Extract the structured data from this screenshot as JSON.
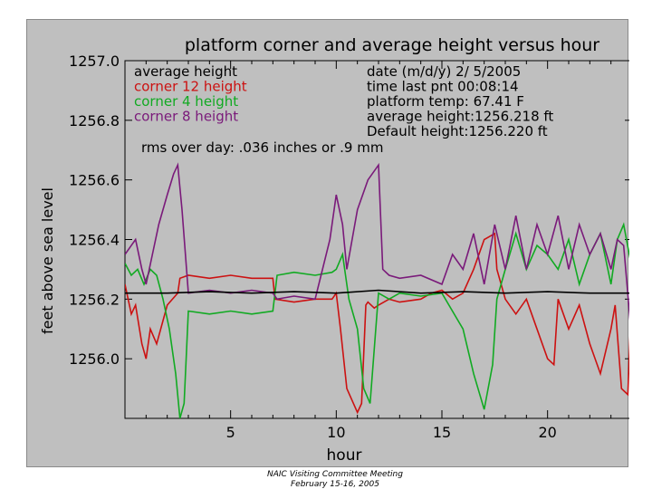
{
  "footer": {
    "line1": "NAIC Visiting Committee Meeting",
    "line2": "February 15-16, 2005"
  },
  "colors": {
    "background": "#bfbfbf",
    "average": "#000000",
    "corner12": "#cc1111",
    "corner4": "#11aa22",
    "corner8": "#7a1a7a"
  },
  "chart_data": {
    "type": "line",
    "title": "platform corner and average height versus hour",
    "xlabel": "hour",
    "ylabel": "feet above sea level",
    "xlim": [
      0,
      24
    ],
    "ylim": [
      1255.8,
      1257.0
    ],
    "x_ticks": [
      5,
      10,
      15,
      20
    ],
    "y_ticks": [
      1256.0,
      1256.2,
      1256.4,
      1256.6,
      1256.8,
      1257.0
    ],
    "y_tick_labels": [
      "1256.0",
      "1256.2",
      "1256.4",
      "1256.6",
      "1256.8",
      "1257.0"
    ],
    "grid": false,
    "legend": {
      "placement": "top-left",
      "entries": [
        {
          "label": "average    height",
          "color": "#000000"
        },
        {
          "label": "corner  12  height",
          "color": "#cc1111"
        },
        {
          "label": "corner    4  height",
          "color": "#11aa22"
        },
        {
          "label": "corner    8  height",
          "color": "#7a1a7a"
        }
      ]
    },
    "annotations": {
      "rms": "rms over day: .036 inches or .9 mm",
      "info": [
        "date (m/d/y)   2/ 5/2005",
        "time last pnt    00:08:14",
        "platform temp:    67.41  F",
        "average  height:1256.218  ft",
        "Default   height:1256.220  ft"
      ]
    },
    "series": [
      {
        "name": "average height",
        "color": "#000000",
        "x": [
          0,
          2,
          4,
          6,
          8,
          10,
          12,
          14,
          16,
          18,
          20,
          22,
          24
        ],
        "y": [
          1256.22,
          1256.22,
          1256.225,
          1256.22,
          1256.225,
          1256.22,
          1256.23,
          1256.22,
          1256.225,
          1256.22,
          1256.225,
          1256.22,
          1256.22
        ]
      },
      {
        "name": "corner 12 height",
        "color": "#cc1111",
        "x": [
          0,
          0.3,
          0.5,
          0.8,
          1.0,
          1.2,
          1.5,
          2.0,
          2.5,
          2.6,
          3.0,
          4.0,
          5.0,
          6.0,
          7.0,
          7.1,
          8.0,
          9.0,
          9.8,
          10.0,
          10.2,
          10.5,
          11.0,
          11.2,
          11.4,
          11.5,
          11.8,
          12.0,
          12.5,
          13.0,
          14.0,
          14.5,
          15.0,
          15.5,
          16.0,
          16.5,
          17.0,
          17.5,
          17.6,
          18.0,
          18.5,
          19.0,
          19.5,
          20.0,
          20.3,
          20.5,
          21.0,
          21.5,
          22.0,
          22.5,
          23.0,
          23.2,
          23.5,
          23.8,
          24.0
        ],
        "y": [
          1256.25,
          1256.15,
          1256.18,
          1256.05,
          1256.0,
          1256.1,
          1256.05,
          1256.18,
          1256.22,
          1256.27,
          1256.28,
          1256.27,
          1256.28,
          1256.27,
          1256.27,
          1256.2,
          1256.19,
          1256.2,
          1256.2,
          1256.22,
          1256.1,
          1255.9,
          1255.82,
          1255.85,
          1256.18,
          1256.19,
          1256.17,
          1256.18,
          1256.2,
          1256.19,
          1256.2,
          1256.22,
          1256.23,
          1256.2,
          1256.22,
          1256.3,
          1256.4,
          1256.42,
          1256.3,
          1256.2,
          1256.15,
          1256.2,
          1256.1,
          1256.0,
          1255.98,
          1256.2,
          1256.1,
          1256.18,
          1256.05,
          1255.95,
          1256.1,
          1256.18,
          1255.9,
          1255.88,
          1256.25
        ]
      },
      {
        "name": "corner 4 height",
        "color": "#11aa22",
        "x": [
          0,
          0.3,
          0.6,
          0.9,
          1.2,
          1.5,
          1.8,
          2.1,
          2.4,
          2.6,
          2.8,
          3.0,
          4.0,
          5.0,
          6.0,
          7.0,
          7.2,
          8.0,
          9.0,
          9.8,
          10.0,
          10.3,
          10.6,
          11.0,
          11.3,
          11.6,
          12.0,
          12.5,
          13.0,
          14.0,
          15.0,
          16.0,
          16.5,
          17.0,
          17.4,
          17.6,
          18.0,
          18.5,
          19.0,
          19.5,
          20.0,
          20.5,
          21.0,
          21.5,
          22.0,
          22.5,
          23.0,
          23.3,
          23.6,
          24.0
        ],
        "y": [
          1256.32,
          1256.28,
          1256.3,
          1256.25,
          1256.3,
          1256.28,
          1256.2,
          1256.1,
          1255.95,
          1255.8,
          1255.85,
          1256.16,
          1256.15,
          1256.16,
          1256.15,
          1256.16,
          1256.28,
          1256.29,
          1256.28,
          1256.29,
          1256.3,
          1256.35,
          1256.2,
          1256.1,
          1255.9,
          1255.85,
          1256.22,
          1256.2,
          1256.22,
          1256.21,
          1256.22,
          1256.1,
          1255.95,
          1255.83,
          1255.98,
          1256.2,
          1256.3,
          1256.42,
          1256.3,
          1256.38,
          1256.35,
          1256.3,
          1256.4,
          1256.25,
          1256.35,
          1256.42,
          1256.25,
          1256.4,
          1256.45,
          1256.3
        ]
      },
      {
        "name": "corner 8 height",
        "color": "#7a1a7a",
        "x": [
          0,
          0.3,
          0.5,
          0.8,
          1.0,
          1.3,
          1.6,
          2.0,
          2.3,
          2.5,
          2.7,
          3.0,
          4.0,
          5.0,
          6.0,
          7.0,
          7.2,
          8.0,
          9.0,
          9.7,
          10.0,
          10.3,
          10.5,
          11.0,
          11.5,
          12.0,
          12.2,
          12.5,
          13.0,
          14.0,
          15.0,
          15.5,
          16.0,
          16.5,
          17.0,
          17.5,
          18.0,
          18.5,
          19.0,
          19.5,
          20.0,
          20.5,
          21.0,
          21.5,
          22.0,
          22.5,
          23.0,
          23.3,
          23.6,
          24.0
        ],
        "y": [
          1256.35,
          1256.38,
          1256.4,
          1256.3,
          1256.25,
          1256.35,
          1256.45,
          1256.55,
          1256.62,
          1256.65,
          1256.5,
          1256.22,
          1256.23,
          1256.22,
          1256.23,
          1256.22,
          1256.2,
          1256.21,
          1256.2,
          1256.4,
          1256.55,
          1256.45,
          1256.3,
          1256.5,
          1256.6,
          1256.65,
          1256.3,
          1256.28,
          1256.27,
          1256.28,
          1256.25,
          1256.35,
          1256.3,
          1256.42,
          1256.25,
          1256.45,
          1256.3,
          1256.48,
          1256.3,
          1256.45,
          1256.35,
          1256.48,
          1256.3,
          1256.45,
          1256.35,
          1256.42,
          1256.3,
          1256.4,
          1256.38,
          1256.05
        ]
      }
    ]
  }
}
